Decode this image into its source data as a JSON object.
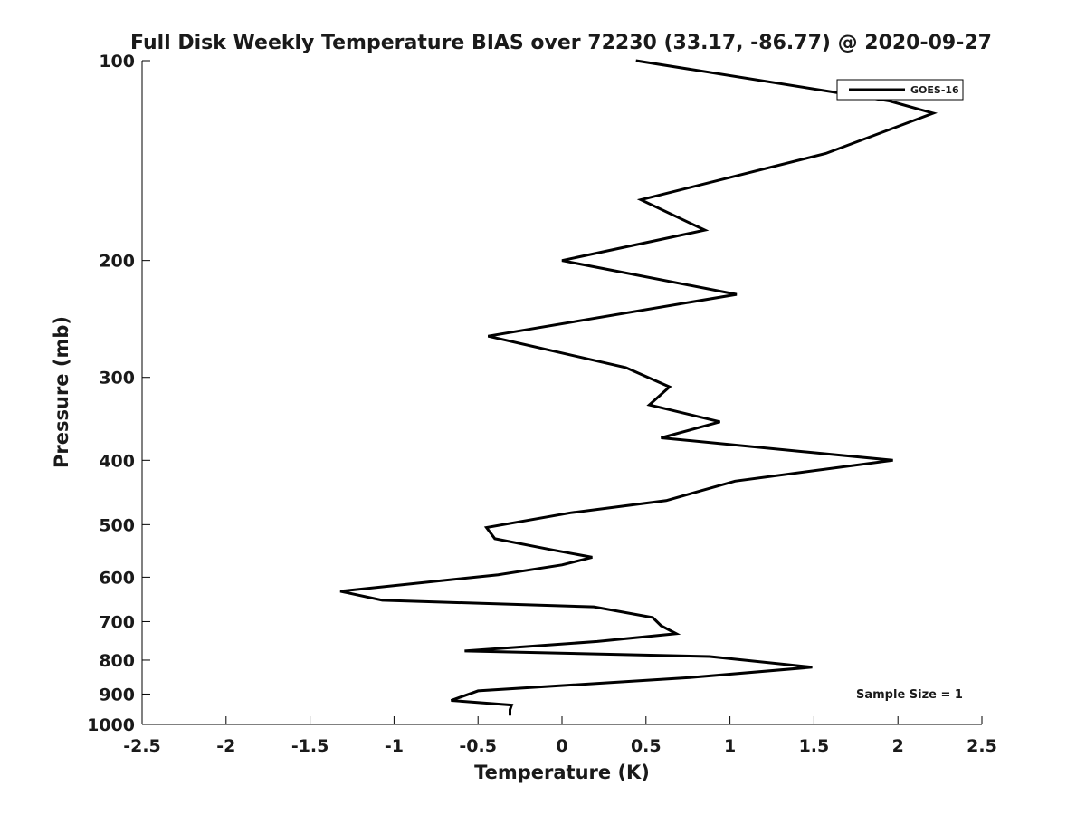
{
  "chart_data": {
    "type": "line",
    "title": "Full Disk Weekly Temperature BIAS over 72230 (33.17, -86.77) @ 2020-09-27",
    "xlabel": "Temperature (K)",
    "ylabel": "Pressure (mb)",
    "xlim": [
      -2.5,
      2.5
    ],
    "ylim": [
      100,
      1000
    ],
    "y_scale": "log",
    "y_reversed": true,
    "x_ticks": [
      -2.5,
      -2,
      -1.5,
      -1,
      -0.5,
      0,
      0.5,
      1,
      1.5,
      2,
      2.5
    ],
    "x_tick_labels": [
      "-2.5",
      "-2",
      "-1.5",
      "-1",
      "-0.5",
      "0",
      "0.5",
      "1",
      "1.5",
      "2",
      "2.5"
    ],
    "y_ticks": [
      100,
      200,
      300,
      400,
      500,
      600,
      700,
      800,
      900,
      1000
    ],
    "y_tick_labels": [
      "100",
      "200",
      "300",
      "400",
      "500",
      "600",
      "700",
      "800",
      "900",
      "1000"
    ],
    "grid": false,
    "legend_position": "top-right",
    "annotation": "Sample Size = 1",
    "series": [
      {
        "name": "GOES-16",
        "color": "#000000",
        "x": [
          0.44,
          1.95,
          2.21,
          1.57,
          0.47,
          0.85,
          0.0,
          1.04,
          -0.44,
          0.38,
          0.64,
          0.52,
          0.94,
          0.59,
          1.97,
          1.03,
          0.62,
          0.05,
          -0.45,
          -0.4,
          -0.07,
          0.18,
          0.0,
          -0.38,
          -1.32,
          -1.07,
          0.19,
          0.54,
          0.59,
          0.68,
          0.21,
          -0.58,
          0.88,
          1.49,
          0.76,
          -0.5,
          -0.66,
          -0.3,
          -0.31,
          -0.31
        ],
        "y": [
          100,
          115,
          120,
          138,
          162,
          180,
          200,
          225,
          260,
          290,
          310,
          330,
          350,
          370,
          400,
          430,
          460,
          480,
          505,
          525,
          545,
          560,
          575,
          595,
          630,
          650,
          665,
          690,
          710,
          730,
          750,
          775,
          790,
          820,
          850,
          890,
          920,
          935,
          950,
          970
        ]
      }
    ]
  }
}
